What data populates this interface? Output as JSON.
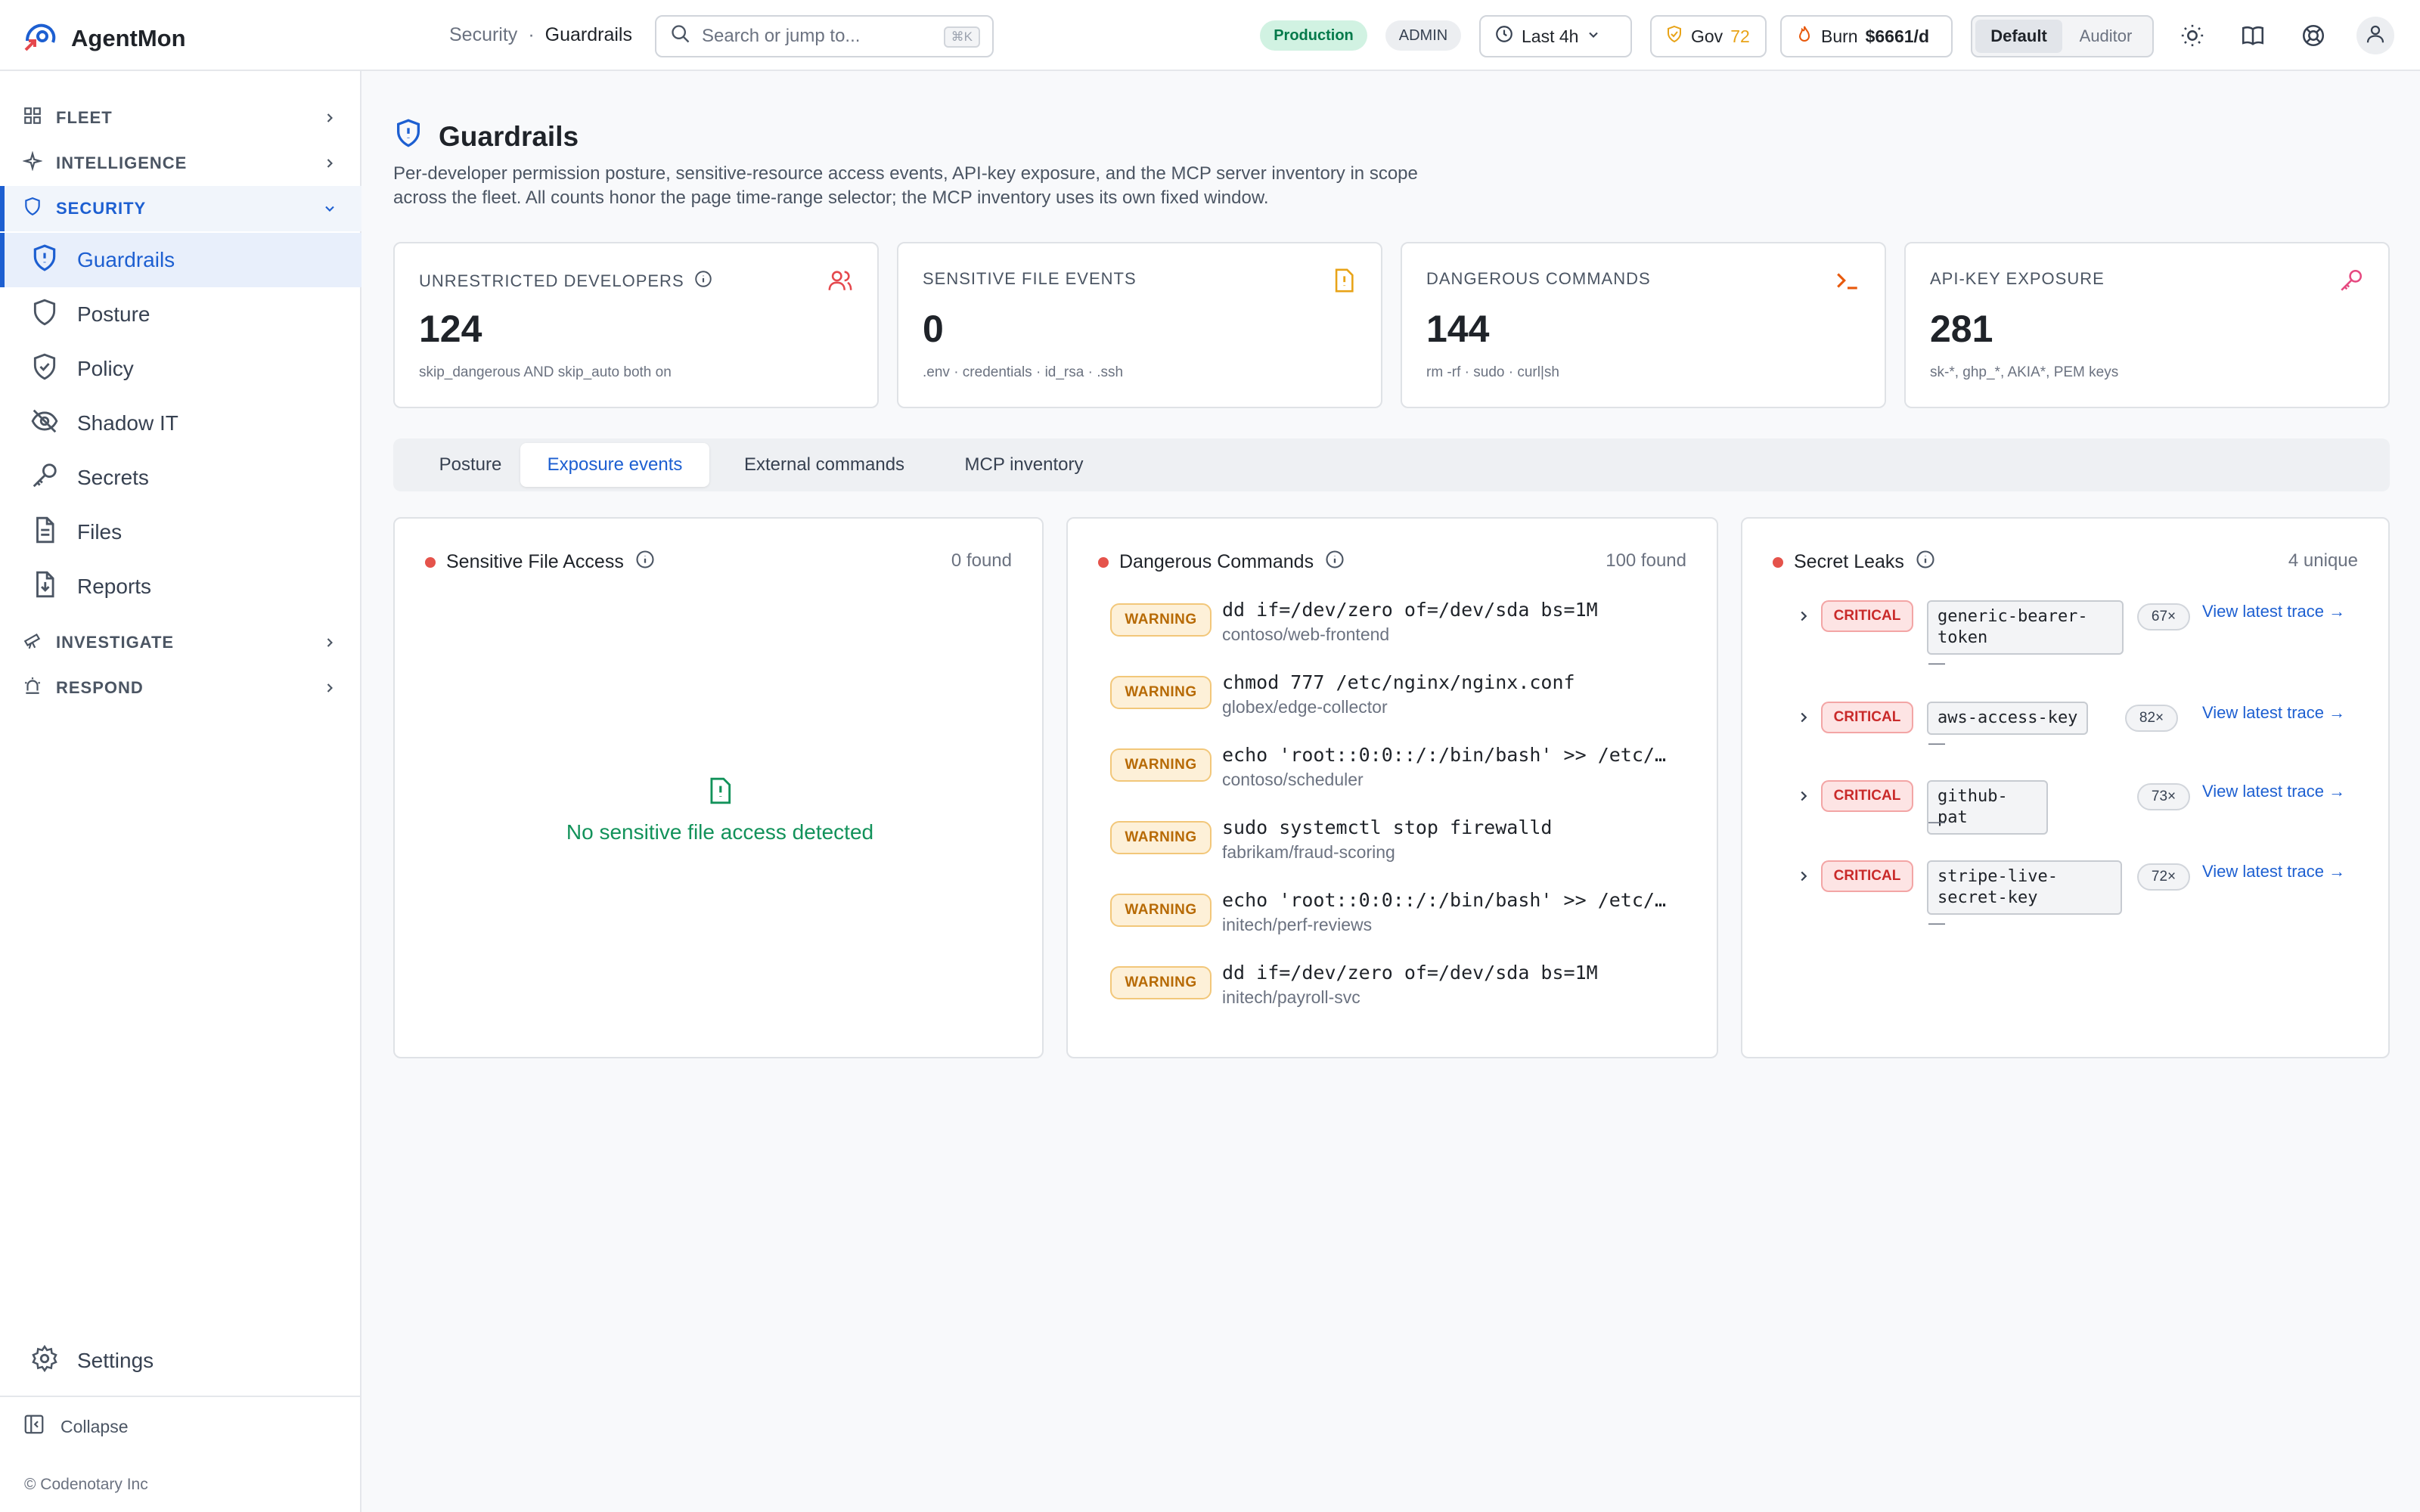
{
  "app": {
    "name": "AgentMon"
  },
  "breadcrumb": {
    "parent": "Security",
    "separator": "·",
    "current": "Guardrails"
  },
  "search": {
    "placeholder": "Search or jump to...",
    "shortcut": "⌘K"
  },
  "env_badge": "Production",
  "role_badge": "ADMIN",
  "time_range": "Last 4h",
  "gov": {
    "label": "Gov",
    "score": "72"
  },
  "burn": {
    "label": "Burn",
    "value": "$6661/d"
  },
  "view_toggle": {
    "options": [
      "Default",
      "Auditor"
    ],
    "selected": "Default"
  },
  "sidebar": {
    "groups": [
      {
        "label": "FLEET",
        "icon": "grid-icon"
      },
      {
        "label": "INTELLIGENCE",
        "icon": "sparkle-icon"
      },
      {
        "label": "SECURITY",
        "icon": "shield-icon"
      },
      {
        "label": "INVESTIGATE",
        "icon": "telescope-icon"
      },
      {
        "label": "RESPOND",
        "icon": "siren-icon"
      }
    ],
    "security_items": [
      {
        "label": "Guardrails",
        "icon": "shield-alert-icon"
      },
      {
        "label": "Posture",
        "icon": "shield-icon"
      },
      {
        "label": "Policy",
        "icon": "shield-check-icon"
      },
      {
        "label": "Shadow IT",
        "icon": "eye-off-icon"
      },
      {
        "label": "Secrets",
        "icon": "key-icon"
      },
      {
        "label": "Files",
        "icon": "file-icon"
      },
      {
        "label": "Reports",
        "icon": "file-download-icon"
      }
    ],
    "settings": "Settings",
    "collapse": "Collapse",
    "copyright": "© Codenotary Inc"
  },
  "page": {
    "title": "Guardrails",
    "description": "Per-developer permission posture, sensitive-resource access events, API-key exposure, and the MCP server inventory in scope across the fleet. All counts honor the page time-range selector; the MCP inventory uses its own fixed window."
  },
  "stats": [
    {
      "label": "UNRESTRICTED DEVELOPERS",
      "value": "124",
      "sub": "skip_dangerous AND skip_auto both on",
      "icon": "users-icon",
      "color": "#e5484d"
    },
    {
      "label": "SENSITIVE FILE EVENTS",
      "value": "0",
      "sub": ".env · credentials · id_rsa · .ssh",
      "icon": "file-alert-icon",
      "color": "#e8a317"
    },
    {
      "label": "DANGEROUS COMMANDS",
      "value": "144",
      "sub": "rm -rf · sudo · curl|sh",
      "icon": "terminal-icon",
      "color": "#e8590c"
    },
    {
      "label": "API-KEY EXPOSURE",
      "value": "281",
      "sub": "sk-*, ghp_*, AKIA*, PEM keys",
      "icon": "key-icon",
      "color": "#e64980"
    }
  ],
  "tabs": {
    "items": [
      "Posture",
      "Exposure events",
      "External commands",
      "MCP inventory"
    ],
    "selected": "Exposure events"
  },
  "panels": {
    "sensitive": {
      "title": "Sensitive File Access",
      "count": "0 found",
      "empty_text": "No sensitive file access detected"
    },
    "commands": {
      "title": "Dangerous Commands",
      "count": "100 found",
      "items": [
        {
          "severity": "WARNING",
          "command": "dd if=/dev/zero of=/dev/sda bs=1M",
          "repo": "contoso/web-frontend"
        },
        {
          "severity": "WARNING",
          "command": "chmod 777 /etc/nginx/nginx.conf",
          "repo": "globex/edge-collector"
        },
        {
          "severity": "WARNING",
          "command": "echo 'root::0:0::/:/bin/bash' >> /etc/pa…",
          "repo": "contoso/scheduler"
        },
        {
          "severity": "WARNING",
          "command": "sudo systemctl stop firewalld",
          "repo": "fabrikam/fraud-scoring"
        },
        {
          "severity": "WARNING",
          "command": "echo 'root::0:0::/:/bin/bash' >> /etc/pa…",
          "repo": "initech/perf-reviews"
        },
        {
          "severity": "WARNING",
          "command": "dd if=/dev/zero of=/dev/sda bs=1M",
          "repo": "initech/payroll-svc"
        }
      ]
    },
    "leaks": {
      "title": "Secret Leaks",
      "count": "4 unique",
      "items": [
        {
          "severity": "CRITICAL",
          "key_line1": "generic-bearer-",
          "key_line2": "token",
          "count": "67×",
          "sub": "—",
          "link": "View latest trace →"
        },
        {
          "severity": "CRITICAL",
          "key_line1": "aws-access-key",
          "key_line2": "",
          "count": "82×",
          "sub": "—",
          "link": "View latest trace →"
        },
        {
          "severity": "CRITICAL",
          "key_line1": "github-pat",
          "key_line2": "",
          "count": "73×",
          "sub": "—",
          "link": "View latest trace →"
        },
        {
          "severity": "CRITICAL",
          "key_line1": "stripe-live-",
          "key_line2": "secret-key",
          "count": "72×",
          "sub": "—",
          "link": "View latest trace →"
        }
      ]
    }
  },
  "colors": {
    "accent": "#1d5fd1",
    "success": "#12925a",
    "danger": "#e5534b",
    "warning": "#b76a05"
  }
}
